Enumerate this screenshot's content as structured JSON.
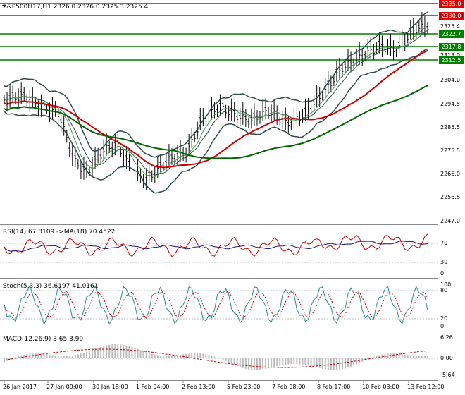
{
  "main": {
    "header": "S&P500H17,H1  2326.0 2326.0 2325.3 2325.4",
    "y_ticks": [
      "2335.5",
      "2325.4",
      "2313.0",
      "2304.0",
      "2294.5",
      "2285.5",
      "2275.5",
      "2266.0",
      "2256.5",
      "2247.0"
    ],
    "levels": [
      {
        "label": "2335.0",
        "color": "#e00000"
      },
      {
        "label": "2330.0",
        "color": "#e00000"
      },
      {
        "label": "2322.7",
        "color": "#008000"
      },
      {
        "label": "2317.8",
        "color": "#008000"
      },
      {
        "label": "2312.5",
        "color": "#008000"
      }
    ],
    "price_label": "2325.4"
  },
  "rsi": {
    "header": "RSI(14) 67.8109  ->MA(18) 70.4522",
    "ticks": [
      "70",
      "30",
      "0"
    ]
  },
  "stoch": {
    "header": "Stoch(5,3,3) 36.6197 41.0161",
    "ticks": [
      "100",
      "80",
      "20",
      "0"
    ]
  },
  "macd": {
    "header": "MACD(12,26,9) 3.65 3.99",
    "ticks": [
      "6.26",
      "0.00",
      "-5.64"
    ]
  },
  "time_labels": [
    "26 Jan 2017",
    "27 Jan 09:00",
    "30 Jan 18:00",
    "1 Feb 04:00",
    "2 Feb 13:00",
    "5 Feb 23:00",
    "7 Feb 08:00",
    "8 Feb 17:00",
    "10 Feb 03:00",
    "13 Feb 12:00"
  ],
  "colors": {
    "candle": "#000000",
    "bb": "#2e4a4a",
    "ma_red": "#cc0000",
    "ma_green": "#006400",
    "rsi": "#cc0000",
    "stoch": "#2a8a8a"
  }
}
